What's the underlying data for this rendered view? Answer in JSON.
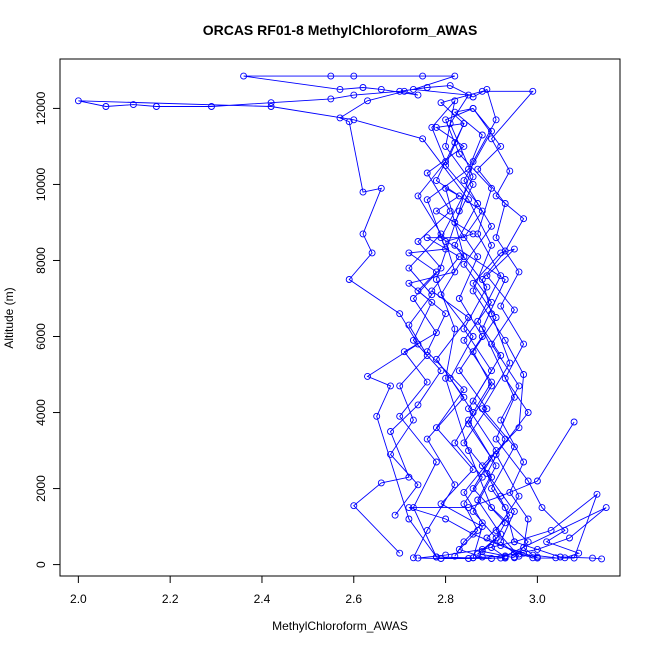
{
  "chart_data": {
    "type": "line",
    "title": "ORCAS RF01-8 MethylChloroform_AWAS",
    "xlabel": "MethylChloroform_AWAS",
    "ylabel": "Altitude (m)",
    "xlim": [
      1.96,
      3.18
    ],
    "ylim": [
      -300,
      13300
    ],
    "x_ticks": [
      2.0,
      2.2,
      2.4,
      2.6,
      2.8,
      3.0
    ],
    "x_tick_labels": [
      "2.0",
      "2.2",
      "2.4",
      "2.6",
      "2.8",
      "3.0"
    ],
    "y_ticks": [
      0,
      2000,
      4000,
      6000,
      8000,
      10000,
      12000
    ],
    "y_tick_labels": [
      "0",
      "2000",
      "4000",
      "6000",
      "8000",
      "10000",
      "12000"
    ],
    "grid": false,
    "color": "#0000ff",
    "series": [
      {
        "points": [
          [
            2.95,
            200
          ],
          [
            2.98,
            600
          ],
          [
            2.9,
            1500
          ],
          [
            2.85,
            3000
          ],
          [
            2.8,
            4900
          ],
          [
            2.82,
            6200
          ],
          [
            2.78,
            7500
          ],
          [
            2.83,
            9300
          ],
          [
            2.86,
            10600
          ],
          [
            2.91,
            11700
          ],
          [
            2.89,
            12500
          ],
          [
            2.86,
            12300
          ],
          [
            2.81,
            12600
          ],
          [
            2.76,
            12550
          ],
          [
            2.7,
            12450
          ],
          [
            2.6,
            12350
          ],
          [
            2.55,
            12250
          ],
          [
            2.42,
            12150
          ],
          [
            2.29,
            12050
          ],
          [
            2.17,
            12050
          ],
          [
            2.12,
            12100
          ],
          [
            2.06,
            12050
          ],
          [
            2.0,
            12200
          ],
          [
            2.42,
            12050
          ],
          [
            2.6,
            11700
          ],
          [
            2.75,
            11200
          ],
          [
            2.85,
            9600
          ],
          [
            2.9,
            8400
          ],
          [
            2.86,
            7200
          ],
          [
            2.93,
            5900
          ],
          [
            2.97,
            5000
          ],
          [
            2.96,
            3600
          ],
          [
            2.88,
            2600
          ],
          [
            2.93,
            1500
          ],
          [
            2.95,
            600
          ],
          [
            3.05,
            200
          ],
          [
            3.12,
            170
          ],
          [
            3.14,
            150
          ]
        ]
      },
      {
        "points": [
          [
            2.78,
            200
          ],
          [
            2.72,
            1200
          ],
          [
            2.65,
            3900
          ],
          [
            2.68,
            4700
          ],
          [
            2.63,
            4950
          ],
          [
            2.74,
            5800
          ],
          [
            2.7,
            6600
          ],
          [
            2.59,
            7500
          ],
          [
            2.64,
            8200
          ],
          [
            2.62,
            8700
          ],
          [
            2.66,
            9900
          ],
          [
            2.62,
            9800
          ],
          [
            2.59,
            11650
          ],
          [
            2.57,
            11750
          ],
          [
            2.63,
            12200
          ],
          [
            2.71,
            12450
          ],
          [
            2.74,
            12350
          ],
          [
            2.66,
            12500
          ],
          [
            2.62,
            12550
          ],
          [
            2.57,
            12500
          ],
          [
            2.36,
            12850
          ],
          [
            2.55,
            12850
          ],
          [
            2.6,
            12850
          ],
          [
            2.75,
            12850
          ],
          [
            2.82,
            12850
          ],
          [
            2.73,
            12500
          ],
          [
            2.85,
            12350
          ],
          [
            2.81,
            11600
          ],
          [
            2.86,
            10200
          ],
          [
            2.79,
            8600
          ],
          [
            2.93,
            7500
          ],
          [
            2.88,
            6200
          ],
          [
            2.95,
            4400
          ],
          [
            2.91,
            3300
          ],
          [
            2.98,
            2200
          ],
          [
            3.01,
            1500
          ],
          [
            3.06,
            900
          ],
          [
            3.02,
            600
          ],
          [
            3.09,
            300
          ],
          [
            3.06,
            180
          ]
        ]
      },
      {
        "points": [
          [
            2.73,
            180
          ],
          [
            2.76,
            900
          ],
          [
            2.82,
            2100
          ],
          [
            2.76,
            3300
          ],
          [
            2.84,
            4400
          ],
          [
            2.78,
            5400
          ],
          [
            2.85,
            6500
          ],
          [
            2.77,
            7200
          ],
          [
            2.83,
            8100
          ],
          [
            2.76,
            8600
          ],
          [
            2.84,
            8600
          ],
          [
            2.88,
            9300
          ],
          [
            2.78,
            10100
          ],
          [
            2.82,
            11100
          ],
          [
            2.84,
            11600
          ],
          [
            2.79,
            12150
          ],
          [
            2.88,
            12450
          ],
          [
            2.99,
            12450
          ],
          [
            2.9,
            11200
          ],
          [
            2.94,
            10350
          ],
          [
            2.91,
            9700
          ],
          [
            2.97,
            9100
          ],
          [
            2.93,
            8250
          ],
          [
            2.88,
            7500
          ],
          [
            2.9,
            6600
          ],
          [
            2.94,
            5300
          ],
          [
            2.88,
            4100
          ],
          [
            2.95,
            3100
          ],
          [
            2.9,
            2000
          ],
          [
            2.94,
            1300
          ],
          [
            2.89,
            700
          ],
          [
            2.96,
            280
          ],
          [
            2.99,
            180
          ]
        ]
      },
      {
        "points": [
          [
            2.7,
            300
          ],
          [
            2.6,
            1550
          ],
          [
            2.66,
            2150
          ],
          [
            2.72,
            2300
          ],
          [
            2.68,
            3500
          ],
          [
            2.74,
            4200
          ],
          [
            2.79,
            5100
          ],
          [
            2.73,
            5900
          ],
          [
            2.77,
            6900
          ],
          [
            2.72,
            7400
          ],
          [
            2.82,
            7700
          ],
          [
            2.8,
            8500
          ],
          [
            2.86,
            8700
          ],
          [
            2.78,
            9300
          ],
          [
            2.83,
            9700
          ],
          [
            2.8,
            9900
          ],
          [
            2.84,
            8100
          ],
          [
            2.79,
            7100
          ],
          [
            2.86,
            6000
          ],
          [
            2.81,
            4900
          ],
          [
            2.86,
            4000
          ],
          [
            2.82,
            3200
          ],
          [
            2.88,
            2300
          ],
          [
            2.84,
            1600
          ],
          [
            2.87,
            900
          ],
          [
            2.83,
            400
          ],
          [
            2.88,
            200
          ]
        ]
      },
      {
        "points": [
          [
            2.86,
            180
          ],
          [
            2.88,
            1000
          ],
          [
            2.79,
            1600
          ],
          [
            2.86,
            2500
          ],
          [
            2.78,
            3600
          ],
          [
            2.84,
            4600
          ],
          [
            2.76,
            5600
          ],
          [
            2.8,
            6600
          ],
          [
            2.74,
            7200
          ],
          [
            2.78,
            7700
          ],
          [
            2.72,
            8200
          ],
          [
            2.8,
            8300
          ],
          [
            2.76,
            9600
          ],
          [
            2.85,
            10400
          ],
          [
            2.88,
            11300
          ],
          [
            2.82,
            11900
          ],
          [
            2.86,
            12000
          ],
          [
            2.8,
            11700
          ],
          [
            2.83,
            10800
          ],
          [
            2.9,
            9900
          ],
          [
            2.87,
            8700
          ],
          [
            2.92,
            7600
          ],
          [
            2.87,
            6400
          ],
          [
            2.92,
            5500
          ],
          [
            2.86,
            4300
          ],
          [
            2.93,
            3300
          ],
          [
            2.89,
            2400
          ],
          [
            2.95,
            1400
          ],
          [
            2.92,
            600
          ],
          [
            2.95,
            300
          ],
          [
            3.0,
            200
          ]
        ]
      },
      {
        "points": [
          [
            2.82,
            220
          ],
          [
            2.84,
            600
          ],
          [
            2.88,
            1100
          ],
          [
            2.84,
            1900
          ],
          [
            2.9,
            2800
          ],
          [
            2.85,
            3700
          ],
          [
            2.9,
            4700
          ],
          [
            2.86,
            5600
          ],
          [
            2.91,
            6500
          ],
          [
            2.86,
            7400
          ],
          [
            2.92,
            8200
          ],
          [
            2.95,
            8300
          ],
          [
            2.89,
            7600
          ],
          [
            2.95,
            6700
          ],
          [
            2.9,
            5800
          ],
          [
            2.96,
            4700
          ],
          [
            2.92,
            3800
          ],
          [
            2.97,
            2700
          ],
          [
            2.94,
            1900
          ],
          [
            2.98,
            1200
          ],
          [
            2.97,
            450
          ],
          [
            2.99,
            250
          ],
          [
            3.04,
            180
          ]
        ]
      },
      {
        "points": [
          [
            2.9,
            160
          ],
          [
            2.78,
            200
          ],
          [
            2.73,
            1500
          ],
          [
            2.78,
            2700
          ],
          [
            2.7,
            3900
          ],
          [
            2.76,
            4800
          ],
          [
            2.71,
            5600
          ],
          [
            2.78,
            6100
          ],
          [
            2.73,
            7000
          ],
          [
            2.79,
            7800
          ],
          [
            2.74,
            8500
          ],
          [
            2.81,
            9300
          ],
          [
            2.76,
            10300
          ],
          [
            2.84,
            11000
          ],
          [
            2.78,
            11500
          ],
          [
            2.84,
            11600
          ],
          [
            2.8,
            10500
          ],
          [
            2.87,
            9500
          ],
          [
            2.82,
            8400
          ],
          [
            2.89,
            7300
          ],
          [
            2.84,
            6200
          ],
          [
            2.9,
            5100
          ],
          [
            2.85,
            4100
          ],
          [
            2.91,
            3000
          ],
          [
            2.86,
            2000
          ],
          [
            2.93,
            1100
          ],
          [
            2.9,
            450
          ],
          [
            2.93,
            200
          ]
        ]
      },
      {
        "points": [
          [
            2.96,
            220
          ],
          [
            2.91,
            900
          ],
          [
            2.96,
            1800
          ],
          [
            2.91,
            2900
          ],
          [
            2.98,
            4000
          ],
          [
            2.93,
            4900
          ],
          [
            2.97,
            5800
          ],
          [
            2.92,
            6800
          ],
          [
            2.96,
            7700
          ],
          [
            2.91,
            8600
          ],
          [
            2.93,
            9500
          ],
          [
            2.87,
            10400
          ],
          [
            2.92,
            11000
          ],
          [
            2.86,
            12000
          ],
          [
            2.9,
            11400
          ],
          [
            2.84,
            10100
          ],
          [
            2.9,
            8900
          ],
          [
            2.84,
            7900
          ],
          [
            2.9,
            6900
          ],
          [
            2.84,
            5900
          ],
          [
            2.9,
            4800
          ],
          [
            2.85,
            3800
          ],
          [
            2.91,
            2600
          ],
          [
            2.87,
            1700
          ],
          [
            2.92,
            800
          ],
          [
            2.88,
            350
          ],
          [
            2.95,
            180
          ]
        ]
      },
      {
        "points": [
          [
            3.08,
            3750
          ],
          [
            3.0,
            2200
          ],
          [
            2.92,
            1800
          ],
          [
            2.85,
            1500
          ],
          [
            2.72,
            1500
          ],
          [
            2.8,
            1200
          ],
          [
            2.86,
            800
          ],
          [
            2.92,
            500
          ],
          [
            2.97,
            300
          ],
          [
            3.0,
            170
          ],
          [
            3.08,
            170
          ],
          [
            3.13,
            1850
          ],
          [
            3.03,
            900
          ],
          [
            2.95,
            600
          ],
          [
            2.88,
            400
          ],
          [
            2.8,
            250
          ],
          [
            2.74,
            170
          ],
          [
            2.79,
            160
          ],
          [
            2.85,
            160
          ],
          [
            2.92,
            170
          ],
          [
            3.15,
            1500
          ],
          [
            3.07,
            700
          ],
          [
            3.0,
            400
          ],
          [
            2.93,
            230
          ],
          [
            2.86,
            180
          ]
        ]
      },
      {
        "points": [
          [
            2.69,
            1300
          ],
          [
            2.74,
            2100
          ],
          [
            2.68,
            2900
          ],
          [
            2.73,
            3800
          ],
          [
            2.7,
            4700
          ],
          [
            2.76,
            5500
          ],
          [
            2.72,
            6300
          ],
          [
            2.77,
            7100
          ],
          [
            2.72,
            7800
          ],
          [
            2.79,
            8700
          ],
          [
            2.74,
            9700
          ],
          [
            2.8,
            10600
          ],
          [
            2.77,
            11500
          ],
          [
            2.82,
            12200
          ],
          [
            2.8,
            11000
          ],
          [
            2.86,
            10000
          ],
          [
            2.82,
            9000
          ],
          [
            2.87,
            8100
          ],
          [
            2.83,
            7000
          ],
          [
            2.88,
            6000
          ],
          [
            2.83,
            5100
          ],
          [
            2.89,
            4100
          ],
          [
            2.84,
            3200
          ],
          [
            2.9,
            2300
          ],
          [
            2.86,
            1400
          ],
          [
            2.91,
            700
          ],
          [
            2.87,
            280
          ],
          [
            2.93,
            170
          ]
        ]
      }
    ]
  }
}
